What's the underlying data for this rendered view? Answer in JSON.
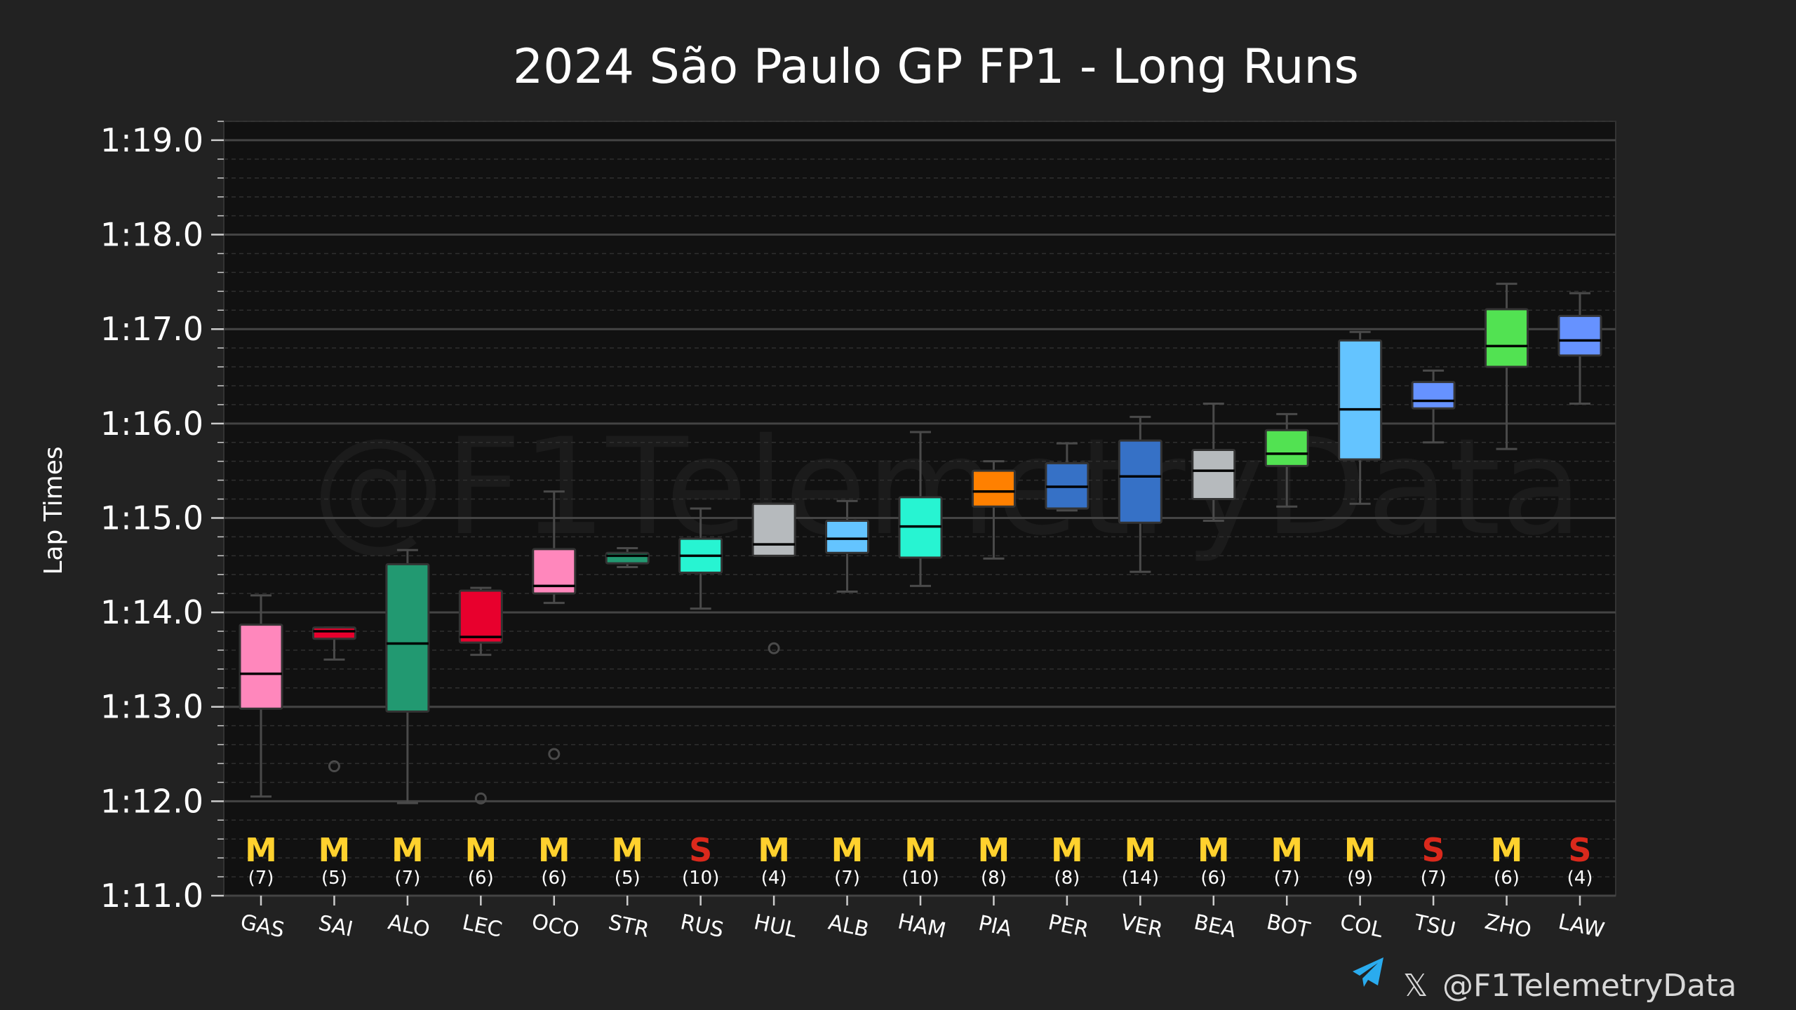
{
  "chart_data": {
    "type": "box",
    "title": "2024 São Paulo GP FP1 - Long Runs",
    "ylabel": "Lap Times",
    "ylim": [
      71.0,
      79.2
    ],
    "yticks": [
      {
        "value": 71,
        "label": "1:11.0"
      },
      {
        "value": 72,
        "label": "1:12.0"
      },
      {
        "value": 73,
        "label": "1:13.0"
      },
      {
        "value": 74,
        "label": "1:14.0"
      },
      {
        "value": 75,
        "label": "1:15.0"
      },
      {
        "value": 76,
        "label": "1:16.0"
      },
      {
        "value": 77,
        "label": "1:17.0"
      },
      {
        "value": 78,
        "label": "1:18.0"
      },
      {
        "value": 79,
        "label": "1:19.0"
      }
    ],
    "grid": true,
    "watermark": "@F1TelemetryData",
    "drivers": [
      {
        "name": "GAS",
        "color": "#FF87BC",
        "whisker_low": 72.05,
        "q1": 72.98,
        "median": 73.35,
        "q3": 73.87,
        "whisker_high": 74.18,
        "outliers": [],
        "compound": "M",
        "count_label": "(7)"
      },
      {
        "name": "SAI",
        "color": "#E8002D",
        "whisker_low": 73.5,
        "q1": 73.72,
        "median": 73.8,
        "q3": 73.84,
        "whisker_high": 73.84,
        "outliers": [
          72.37
        ],
        "compound": "M",
        "count_label": "(5)"
      },
      {
        "name": "ALO",
        "color": "#229971",
        "whisker_low": 71.98,
        "q1": 72.95,
        "median": 73.67,
        "q3": 74.51,
        "whisker_high": 74.66,
        "outliers": [],
        "compound": "M",
        "count_label": "(7)"
      },
      {
        "name": "LEC",
        "color": "#E8002D",
        "whisker_low": 73.55,
        "q1": 73.68,
        "median": 73.74,
        "q3": 74.23,
        "whisker_high": 74.26,
        "outliers": [
          72.03
        ],
        "compound": "M",
        "count_label": "(6)"
      },
      {
        "name": "OCO",
        "color": "#FF87BC",
        "whisker_low": 74.1,
        "q1": 74.2,
        "median": 74.28,
        "q3": 74.67,
        "whisker_high": 75.28,
        "outliers": [
          72.5
        ],
        "compound": "M",
        "count_label": "(6)"
      },
      {
        "name": "STR",
        "color": "#229971",
        "whisker_low": 74.48,
        "q1": 74.52,
        "median": 74.6,
        "q3": 74.63,
        "whisker_high": 74.68,
        "outliers": [],
        "compound": "M",
        "count_label": "(5)"
      },
      {
        "name": "RUS",
        "color": "#27F4D2",
        "whisker_low": 74.04,
        "q1": 74.42,
        "median": 74.6,
        "q3": 74.78,
        "whisker_high": 75.1,
        "outliers": [],
        "compound": "S",
        "count_label": "(10)"
      },
      {
        "name": "HUL",
        "color": "#B6BABD",
        "whisker_low": 74.6,
        "q1": 74.6,
        "median": 74.72,
        "q3": 75.15,
        "whisker_high": 75.15,
        "outliers": [
          73.62
        ],
        "compound": "M",
        "count_label": "(4)"
      },
      {
        "name": "ALB",
        "color": "#64C4FF",
        "whisker_low": 74.22,
        "q1": 74.63,
        "median": 74.78,
        "q3": 74.97,
        "whisker_high": 75.18,
        "outliers": [],
        "compound": "M",
        "count_label": "(7)"
      },
      {
        "name": "HAM",
        "color": "#27F4D2",
        "whisker_low": 74.28,
        "q1": 74.58,
        "median": 74.91,
        "q3": 75.22,
        "whisker_high": 75.91,
        "outliers": [],
        "compound": "M",
        "count_label": "(10)"
      },
      {
        "name": "PIA",
        "color": "#FF8000",
        "whisker_low": 74.57,
        "q1": 75.12,
        "median": 75.28,
        "q3": 75.5,
        "whisker_high": 75.6,
        "outliers": [],
        "compound": "M",
        "count_label": "(8)"
      },
      {
        "name": "PER",
        "color": "#3671C6",
        "whisker_low": 75.08,
        "q1": 75.1,
        "median": 75.33,
        "q3": 75.58,
        "whisker_high": 75.79,
        "outliers": [],
        "compound": "M",
        "count_label": "(8)"
      },
      {
        "name": "VER",
        "color": "#3671C6",
        "whisker_low": 74.43,
        "q1": 74.95,
        "median": 75.44,
        "q3": 75.82,
        "whisker_high": 76.07,
        "outliers": [],
        "compound": "M",
        "count_label": "(14)"
      },
      {
        "name": "BEA",
        "color": "#B6BABD",
        "whisker_low": 74.97,
        "q1": 75.2,
        "median": 75.5,
        "q3": 75.72,
        "whisker_high": 76.21,
        "outliers": [],
        "compound": "M",
        "count_label": "(6)"
      },
      {
        "name": "BOT",
        "color": "#52E252",
        "whisker_low": 75.12,
        "q1": 75.55,
        "median": 75.68,
        "q3": 75.93,
        "whisker_high": 76.1,
        "outliers": [],
        "compound": "M",
        "count_label": "(7)"
      },
      {
        "name": "COL",
        "color": "#64C4FF",
        "whisker_low": 75.15,
        "q1": 75.62,
        "median": 76.15,
        "q3": 76.88,
        "whisker_high": 76.97,
        "outliers": [],
        "compound": "M",
        "count_label": "(9)"
      },
      {
        "name": "TSU",
        "color": "#6692FF",
        "whisker_low": 75.8,
        "q1": 76.16,
        "median": 76.24,
        "q3": 76.44,
        "whisker_high": 76.56,
        "outliers": [],
        "compound": "S",
        "count_label": "(7)"
      },
      {
        "name": "ZHO",
        "color": "#52E252",
        "whisker_low": 75.73,
        "q1": 76.6,
        "median": 76.82,
        "q3": 77.21,
        "whisker_high": 77.48,
        "outliers": [],
        "compound": "M",
        "count_label": "(6)"
      },
      {
        "name": "LAW",
        "color": "#6692FF",
        "whisker_low": 76.21,
        "q1": 76.72,
        "median": 76.88,
        "q3": 77.14,
        "whisker_high": 77.38,
        "outliers": [],
        "compound": "S",
        "count_label": "(4)"
      }
    ],
    "compound_colors": {
      "M": "#FFD12E",
      "S": "#DA291C"
    }
  },
  "footer": {
    "telegram_icon": "telegram-icon",
    "x_icon": "x-logo-icon",
    "x_symbol": "𝕏",
    "handle": "@F1TelemetryData"
  }
}
